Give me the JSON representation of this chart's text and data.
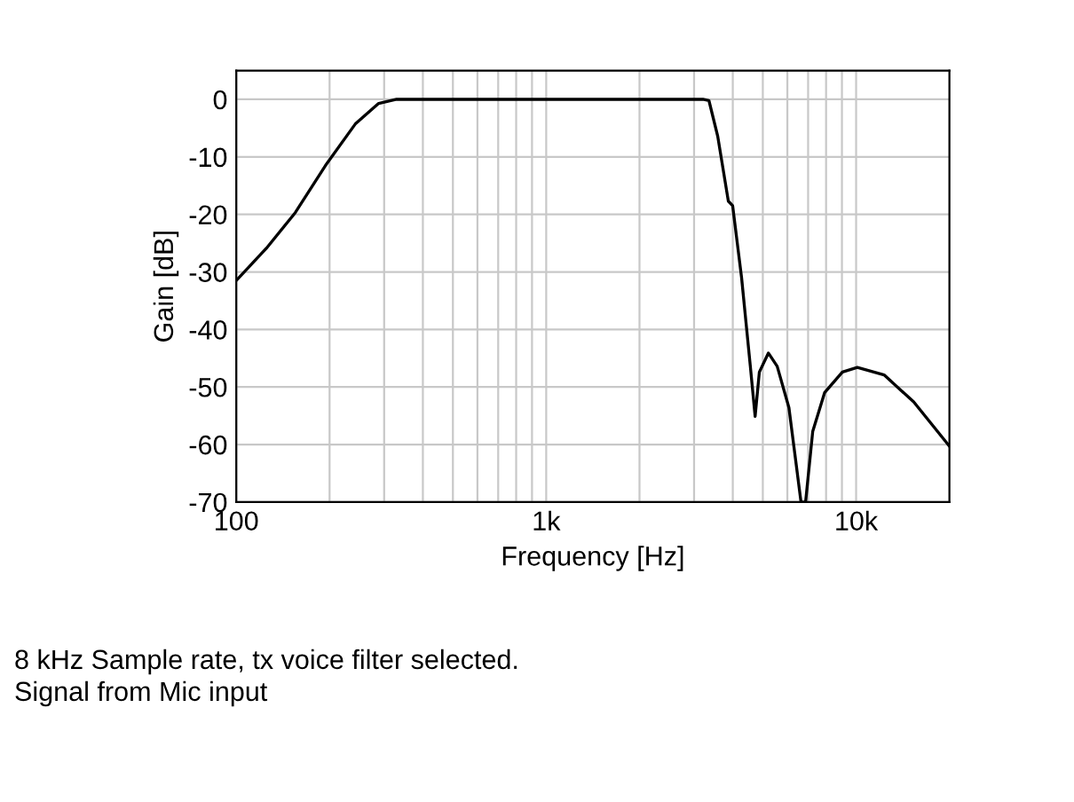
{
  "chart_data": {
    "type": "line",
    "xlabel": "Frequency [Hz]",
    "ylabel": "Gain [dB]",
    "log": "x",
    "grid": true,
    "marker": "none",
    "line_style": "solid",
    "xlim": [
      100,
      20000
    ],
    "ylim": [
      -70,
      5
    ],
    "xticks": [
      {
        "value": 100,
        "label": "100"
      },
      {
        "value": 200,
        "label": null
      },
      {
        "value": 300,
        "label": null
      },
      {
        "value": 400,
        "label": null
      },
      {
        "value": 500,
        "label": null
      },
      {
        "value": 600,
        "label": null
      },
      {
        "value": 700,
        "label": null
      },
      {
        "value": 800,
        "label": null
      },
      {
        "value": 900,
        "label": null
      },
      {
        "value": 1000,
        "label": "1k"
      },
      {
        "value": 2000,
        "label": null
      },
      {
        "value": 3000,
        "label": null
      },
      {
        "value": 4000,
        "label": null
      },
      {
        "value": 5000,
        "label": null
      },
      {
        "value": 6000,
        "label": null
      },
      {
        "value": 7000,
        "label": null
      },
      {
        "value": 8000,
        "label": null
      },
      {
        "value": 9000,
        "label": null
      },
      {
        "value": 10000,
        "label": "10k"
      }
    ],
    "yticks": [
      0,
      -10,
      -20,
      -30,
      -40,
      -50,
      -60,
      -70
    ],
    "series": [
      {
        "color": "#000000",
        "x": [
          100,
          125,
          155,
          194,
          242,
          288,
          329,
          1000,
          3206,
          3350,
          3576,
          3870,
          3996,
          4270,
          4557,
          4722,
          4873,
          5210,
          5563,
          6070,
          6640,
          6870,
          7245,
          7910,
          9030,
          10090,
          12310,
          15340,
          20000
        ],
        "values": [
          -31.5,
          -25.9,
          -19.7,
          -11.5,
          -4.3,
          -0.7,
          0,
          0,
          0,
          -0.2,
          -6.4,
          -17.7,
          -18.5,
          -31,
          -46.4,
          -55.1,
          -47.4,
          -44.1,
          -46.4,
          -53.6,
          -70,
          -70,
          -57.7,
          -51,
          -47.4,
          -46.6,
          -47.9,
          -52.6,
          -60.3
        ]
      }
    ],
    "annotations": [
      "8 kHz Sample rate, tx voice filter selected.",
      "Signal from Mic input"
    ]
  }
}
